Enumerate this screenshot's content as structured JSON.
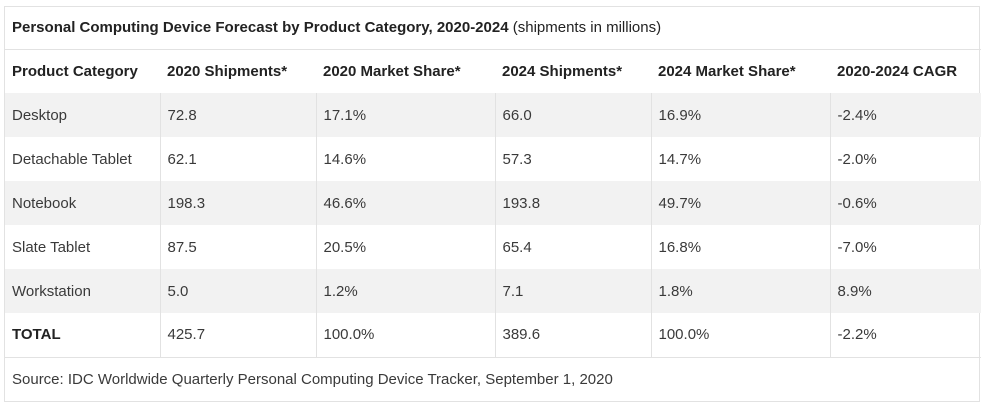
{
  "table": {
    "title": "Personal Computing Device Forecast by Product Category, 2020-2024",
    "subtitle": "(shipments in millions)",
    "headers": [
      "Product Category",
      "2020 Shipments*",
      "2020 Market Share*",
      "2024 Shipments*",
      "2024 Market Share*",
      "2020-2024 CAGR"
    ],
    "rows": [
      [
        "Desktop",
        "72.8",
        "17.1%",
        "66.0",
        "16.9%",
        "-2.4%"
      ],
      [
        "Detachable Tablet",
        "62.1",
        "14.6%",
        "57.3",
        "14.7%",
        "-2.0%"
      ],
      [
        "Notebook",
        "198.3",
        "46.6%",
        "193.8",
        "49.7%",
        "-0.6%"
      ],
      [
        "Slate Tablet",
        "87.5",
        "20.5%",
        "65.4",
        "16.8%",
        "-7.0%"
      ],
      [
        "Workstation",
        "5.0",
        "1.2%",
        "7.1",
        "1.8%",
        "8.9%"
      ],
      [
        "TOTAL",
        "425.7",
        "100.0%",
        "389.6",
        "100.0%",
        "-2.2%"
      ]
    ],
    "source": "Source: IDC Worldwide Quarterly Personal Computing Device Tracker, September 1, 2020"
  }
}
